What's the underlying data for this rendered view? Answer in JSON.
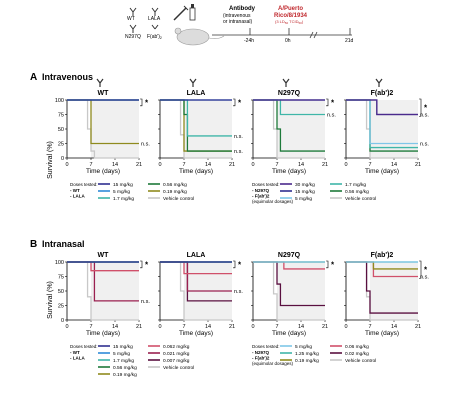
{
  "timeline": {
    "wt_label": "WT",
    "lala_label": "LALA",
    "n297q_label": "N297Q",
    "fab_label": "F(ab')",
    "fab_sub": "2",
    "antibody_title": "Antibody",
    "antibody_route": "(intravenous",
    "antibody_route2": "or intranasal)",
    "virus_line1": "A/Puerto",
    "virus_line2": "Rico/8/1934",
    "virus_line3": "(3 LD",
    "virus_sub": "50",
    "virus_line3b": " TCID",
    "virus_sub2": "50",
    "virus_line3c": ")",
    "t_minus": "-24h",
    "t_zero": "0h",
    "t_end": "21d"
  },
  "sections": {
    "a_letter": "A",
    "a_title": "Intravenous",
    "b_letter": "B",
    "b_title": "Intranasal"
  },
  "axes": {
    "ylabel": "Survival (%)",
    "xlabel": "Time (days)",
    "yticks": [
      "0",
      "25",
      "50",
      "75",
      "100"
    ],
    "xticks": [
      "0",
      "7",
      "14",
      "21"
    ],
    "star": "*",
    "ns": "n.s."
  },
  "legends": {
    "iv_left": {
      "title": "Doses tested:",
      "groups": [
        "- WT",
        "- LALA"
      ],
      "items": [
        {
          "label": "15 mg/kg",
          "color": "#2f2f8f"
        },
        {
          "label": "0.56 mg/kg",
          "color": "#1e7a3a"
        },
        {
          "label": "5 mg/kg",
          "color": "#2e8bd8"
        },
        {
          "label": "0.19 mg/kg",
          "color": "#8f8a1e"
        },
        {
          "label": "1.7 mg/kg",
          "color": "#3fb6a8"
        },
        {
          "label": "Vehicle control",
          "color": "#c8c8c8"
        }
      ]
    },
    "iv_right": {
      "title": "Doses tested:",
      "groups": [
        "- N297Q",
        "- F(ab')2",
        "(equimolar dosages)"
      ],
      "items": [
        {
          "label": "30 mg/kg",
          "color": "#4b2a8c"
        },
        {
          "label": "1.7 mg/kg",
          "color": "#3fb6a8"
        },
        {
          "label": "15 mg/kg",
          "color": "#2f2f8f"
        },
        {
          "label": "0.56 mg/kg",
          "color": "#1e7a3a"
        },
        {
          "label": "5 mg/kg",
          "color": "#7fc6e8"
        },
        {
          "label": "Vehicle control",
          "color": "#c8c8c8"
        }
      ]
    },
    "in_left": {
      "title": "Doses tested:",
      "groups": [
        "- WT",
        "- LALA"
      ],
      "items": [
        {
          "label": "15 mg/kg",
          "color": "#2f2f8f"
        },
        {
          "label": "0.062 mg/kg",
          "color": "#d0506a"
        },
        {
          "label": "5 mg/kg",
          "color": "#2e8bd8"
        },
        {
          "label": "0.021 mg/kg",
          "color": "#9a2050"
        },
        {
          "label": "1.7 mg/kg",
          "color": "#3fb6a8"
        },
        {
          "label": "0.007 mg/kg",
          "color": "#5a1040"
        },
        {
          "label": "0.56 mg/kg",
          "color": "#1e7a3a"
        },
        {
          "label": "Vehicle control",
          "color": "#c8c8c8"
        },
        {
          "label": "0.19 mg/kg",
          "color": "#8f8a1e"
        }
      ]
    },
    "in_right": {
      "title": "Doses tested:",
      "groups": [
        "- N297Q",
        "- F(ab')2",
        "(equimolar dosages)"
      ],
      "items": [
        {
          "label": "5 mg/kg",
          "color": "#7fc6e8"
        },
        {
          "label": "0.06 mg/kg",
          "color": "#d0506a"
        },
        {
          "label": "1.25 mg/kg",
          "color": "#3fb6a8"
        },
        {
          "label": "0.02 mg/kg",
          "color": "#5a1040"
        },
        {
          "label": "0.19 mg/kg",
          "color": "#8f8a1e"
        },
        {
          "label": "Vehicle control",
          "color": "#c8c8c8"
        }
      ]
    }
  },
  "chart_data": [
    {
      "type": "line",
      "title": "WT",
      "section": "Intravenous",
      "xlabel": "Time (days)",
      "ylabel": "Survival (%)",
      "xlim": [
        0,
        21
      ],
      "ylim": [
        0,
        100
      ],
      "series": [
        {
          "name": "15 mg/kg",
          "color": "#2f2f8f",
          "x": [
            0,
            21
          ],
          "y": [
            100,
            100
          ]
        },
        {
          "name": "5 mg/kg",
          "color": "#2e8bd8",
          "x": [
            0,
            21
          ],
          "y": [
            100,
            100
          ]
        },
        {
          "name": "1.7 mg/kg",
          "color": "#3fb6a8",
          "x": [
            0,
            21
          ],
          "y": [
            100,
            100
          ]
        },
        {
          "name": "0.56 mg/kg",
          "color": "#1e7a3a",
          "x": [
            0,
            21
          ],
          "y": [
            100,
            100
          ]
        },
        {
          "name": "0.19 mg/kg",
          "color": "#8f8a1e",
          "x": [
            0,
            7,
            7,
            21
          ],
          "y": [
            100,
            100,
            25,
            25
          ]
        },
        {
          "name": "Vehicle control",
          "color": "#c8c8c8",
          "x": [
            0,
            6,
            6,
            7,
            7,
            8,
            8,
            21
          ],
          "y": [
            100,
            100,
            50,
            50,
            12,
            12,
            0,
            0
          ]
        }
      ],
      "annotations": [
        "*",
        "n.s."
      ]
    },
    {
      "type": "line",
      "title": "LALA",
      "section": "Intravenous",
      "xlabel": "Time (days)",
      "ylabel": "Survival (%)",
      "xlim": [
        0,
        21
      ],
      "ylim": [
        0,
        100
      ],
      "series": [
        {
          "name": "15 mg/kg",
          "color": "#2f2f8f",
          "x": [
            0,
            21
          ],
          "y": [
            100,
            100
          ]
        },
        {
          "name": "5 mg/kg",
          "color": "#2e8bd8",
          "x": [
            0,
            21
          ],
          "y": [
            100,
            100
          ]
        },
        {
          "name": "1.7 mg/kg",
          "color": "#3fb6a8",
          "x": [
            0,
            8,
            8,
            21
          ],
          "y": [
            100,
            100,
            38,
            38
          ]
        },
        {
          "name": "0.56 mg/kg",
          "color": "#1e7a3a",
          "x": [
            0,
            7,
            7,
            8,
            8,
            21
          ],
          "y": [
            100,
            100,
            75,
            75,
            12,
            12
          ]
        },
        {
          "name": "0.19 mg/kg",
          "color": "#8f8a1e",
          "x": [
            0,
            7,
            7,
            21
          ],
          "y": [
            100,
            100,
            12,
            12
          ]
        },
        {
          "name": "Vehicle control",
          "color": "#c8c8c8",
          "x": [
            0,
            6,
            6,
            7,
            7,
            21
          ],
          "y": [
            100,
            100,
            40,
            40,
            0,
            0
          ]
        }
      ],
      "annotations": [
        "*",
        "n.s.",
        "n.s."
      ]
    },
    {
      "type": "line",
      "title": "N297Q",
      "section": "Intravenous",
      "xlabel": "Time (days)",
      "ylabel": "Survival (%)",
      "xlim": [
        0,
        21
      ],
      "ylim": [
        0,
        100
      ],
      "series": [
        {
          "name": "30 mg/kg",
          "color": "#4b2a8c",
          "x": [
            0,
            21
          ],
          "y": [
            100,
            100
          ]
        },
        {
          "name": "15 mg/kg",
          "color": "#2f2f8f",
          "x": [
            0,
            21
          ],
          "y": [
            100,
            100
          ]
        },
        {
          "name": "5 mg/kg",
          "color": "#7fc6e8",
          "x": [
            0,
            21
          ],
          "y": [
            100,
            100
          ]
        },
        {
          "name": "1.7 mg/kg",
          "color": "#3fb6a8",
          "x": [
            0,
            8,
            8,
            21
          ],
          "y": [
            100,
            100,
            75,
            75
          ]
        },
        {
          "name": "0.56 mg/kg",
          "color": "#1e7a3a",
          "x": [
            0,
            7,
            7,
            8,
            8,
            21
          ],
          "y": [
            100,
            100,
            50,
            50,
            12,
            12
          ]
        },
        {
          "name": "Vehicle control",
          "color": "#c8c8c8",
          "x": [
            0,
            6,
            6,
            7,
            7,
            21
          ],
          "y": [
            100,
            100,
            50,
            50,
            0,
            0
          ]
        }
      ],
      "annotations": [
        "*",
        "n.s."
      ]
    },
    {
      "type": "line",
      "title": "F(ab')2",
      "section": "Intravenous",
      "xlabel": "Time (days)",
      "ylabel": "Survival (%)",
      "xlim": [
        0,
        21
      ],
      "ylim": [
        0,
        100
      ],
      "series": [
        {
          "name": "30 mg/kg",
          "color": "#4b2a8c",
          "x": [
            0,
            9,
            9,
            21
          ],
          "y": [
            100,
            100,
            75,
            75
          ]
        },
        {
          "name": "15 mg/kg",
          "color": "#2f2f8f",
          "x": [
            0,
            9,
            9,
            21
          ],
          "y": [
            100,
            100,
            75,
            75
          ]
        },
        {
          "name": "5 mg/kg",
          "color": "#7fc6e8",
          "x": [
            0,
            7,
            7,
            21
          ],
          "y": [
            100,
            100,
            25,
            25
          ]
        },
        {
          "name": "1.7 mg/kg",
          "color": "#3fb6a8",
          "x": [
            0,
            7,
            7,
            21
          ],
          "y": [
            100,
            100,
            18,
            18
          ]
        },
        {
          "name": "0.56 mg/kg",
          "color": "#1e7a3a",
          "x": [
            0,
            7,
            7,
            21
          ],
          "y": [
            100,
            100,
            12,
            12
          ]
        },
        {
          "name": "Vehicle control",
          "color": "#c8c8c8",
          "x": [
            0,
            6,
            6,
            7,
            7,
            21
          ],
          "y": [
            100,
            100,
            50,
            50,
            0,
            0
          ]
        }
      ],
      "annotations": [
        "*",
        "n.s.",
        "n.s."
      ]
    },
    {
      "type": "line",
      "title": "WT",
      "section": "Intranasal",
      "xlabel": "Time (days)",
      "ylabel": "Survival (%)",
      "xlim": [
        0,
        21
      ],
      "ylim": [
        0,
        100
      ],
      "series": [
        {
          "name": "15 mg/kg",
          "color": "#2f2f8f",
          "x": [
            0,
            21
          ],
          "y": [
            100,
            100
          ]
        },
        {
          "name": "5 mg/kg",
          "color": "#2e8bd8",
          "x": [
            0,
            21
          ],
          "y": [
            100,
            100
          ]
        },
        {
          "name": "1.7 mg/kg",
          "color": "#3fb6a8",
          "x": [
            0,
            21
          ],
          "y": [
            100,
            100
          ]
        },
        {
          "name": "0.56 mg/kg",
          "color": "#1e7a3a",
          "x": [
            0,
            21
          ],
          "y": [
            100,
            100
          ]
        },
        {
          "name": "0.19 mg/kg",
          "color": "#8f8a1e",
          "x": [
            0,
            21
          ],
          "y": [
            100,
            100
          ]
        },
        {
          "name": "0.062 mg/kg",
          "color": "#d0506a",
          "x": [
            0,
            7,
            7,
            21
          ],
          "y": [
            100,
            100,
            85,
            85
          ]
        },
        {
          "name": "0.021 mg/kg",
          "color": "#9a2050",
          "x": [
            0,
            8,
            8,
            21
          ],
          "y": [
            100,
            100,
            33,
            33
          ]
        },
        {
          "name": "Vehicle control",
          "color": "#c8c8c8",
          "x": [
            0,
            6,
            6,
            7,
            7,
            21
          ],
          "y": [
            100,
            100,
            40,
            40,
            0,
            0
          ]
        }
      ],
      "annotations": [
        "*",
        "n.s."
      ]
    },
    {
      "type": "line",
      "title": "LALA",
      "section": "Intranasal",
      "xlabel": "Time (days)",
      "ylabel": "Survival (%)",
      "xlim": [
        0,
        21
      ],
      "ylim": [
        0,
        100
      ],
      "series": [
        {
          "name": "15 mg/kg",
          "color": "#2f2f8f",
          "x": [
            0,
            21
          ],
          "y": [
            100,
            100
          ]
        },
        {
          "name": "5 mg/kg",
          "color": "#2e8bd8",
          "x": [
            0,
            21
          ],
          "y": [
            100,
            100
          ]
        },
        {
          "name": "1.7 mg/kg",
          "color": "#3fb6a8",
          "x": [
            0,
            21
          ],
          "y": [
            100,
            100
          ]
        },
        {
          "name": "0.56 mg/kg",
          "color": "#1e7a3a",
          "x": [
            0,
            21
          ],
          "y": [
            100,
            100
          ]
        },
        {
          "name": "0.19 mg/kg",
          "color": "#8f8a1e",
          "x": [
            0,
            21
          ],
          "y": [
            100,
            100
          ]
        },
        {
          "name": "0.062 mg/kg",
          "color": "#d0506a",
          "x": [
            0,
            7,
            7,
            21
          ],
          "y": [
            100,
            100,
            80,
            80
          ]
        },
        {
          "name": "0.021 mg/kg",
          "color": "#9a2050",
          "x": [
            0,
            8,
            8,
            21
          ],
          "y": [
            100,
            100,
            50,
            50
          ]
        },
        {
          "name": "0.007 mg/kg",
          "color": "#5a1040",
          "x": [
            0,
            8,
            8,
            21
          ],
          "y": [
            100,
            100,
            33,
            33
          ]
        },
        {
          "name": "Vehicle control",
          "color": "#c8c8c8",
          "x": [
            0,
            6,
            6,
            7,
            7,
            21
          ],
          "y": [
            100,
            100,
            50,
            50,
            0,
            0
          ]
        }
      ],
      "annotations": [
        "*",
        "n.s."
      ]
    },
    {
      "type": "line",
      "title": "N297Q",
      "section": "Intranasal",
      "xlabel": "Time (days)",
      "ylabel": "Survival (%)",
      "xlim": [
        0,
        21
      ],
      "ylim": [
        0,
        100
      ],
      "series": [
        {
          "name": "5 mg/kg",
          "color": "#7fc6e8",
          "x": [
            0,
            21
          ],
          "y": [
            100,
            100
          ]
        },
        {
          "name": "1.25 mg/kg",
          "color": "#3fb6a8",
          "x": [
            0,
            21
          ],
          "y": [
            100,
            100
          ]
        },
        {
          "name": "0.19 mg/kg",
          "color": "#8f8a1e",
          "x": [
            0,
            21
          ],
          "y": [
            100,
            100
          ]
        },
        {
          "name": "0.06 mg/kg",
          "color": "#d0506a",
          "x": [
            0,
            9,
            9,
            21
          ],
          "y": [
            100,
            100,
            88,
            88
          ]
        },
        {
          "name": "0.02 mg/kg",
          "color": "#5a1040",
          "x": [
            0,
            7,
            7,
            8,
            8,
            21
          ],
          "y": [
            100,
            100,
            62,
            62,
            25,
            25
          ]
        },
        {
          "name": "Vehicle control",
          "color": "#c8c8c8",
          "x": [
            0,
            6,
            6,
            7,
            7,
            21
          ],
          "y": [
            100,
            100,
            45,
            45,
            0,
            0
          ]
        }
      ],
      "annotations": [
        "*"
      ]
    },
    {
      "type": "line",
      "title": "F(ab')2",
      "section": "Intranasal",
      "xlabel": "Time (days)",
      "ylabel": "Survival (%)",
      "xlim": [
        0,
        21
      ],
      "ylim": [
        0,
        100
      ],
      "series": [
        {
          "name": "5 mg/kg",
          "color": "#7fc6e8",
          "x": [
            0,
            21
          ],
          "y": [
            100,
            100
          ]
        },
        {
          "name": "1.25 mg/kg",
          "color": "#3fb6a8",
          "x": [
            0,
            21
          ],
          "y": [
            100,
            100
          ]
        },
        {
          "name": "0.19 mg/kg",
          "color": "#8f8a1e",
          "x": [
            0,
            8,
            8,
            21
          ],
          "y": [
            100,
            100,
            88,
            88
          ]
        },
        {
          "name": "0.06 mg/kg",
          "color": "#d0506a",
          "x": [
            0,
            8,
            8,
            21
          ],
          "y": [
            100,
            100,
            75,
            75
          ]
        },
        {
          "name": "0.02 mg/kg",
          "color": "#5a1040",
          "x": [
            0,
            6,
            6,
            7,
            7,
            21
          ],
          "y": [
            100,
            100,
            50,
            50,
            12,
            12
          ]
        },
        {
          "name": "Vehicle control",
          "color": "#c8c8c8",
          "x": [
            0,
            6,
            6,
            7,
            7,
            21
          ],
          "y": [
            100,
            100,
            40,
            40,
            0,
            0
          ]
        }
      ],
      "annotations": [
        "*",
        "n.s."
      ]
    }
  ]
}
